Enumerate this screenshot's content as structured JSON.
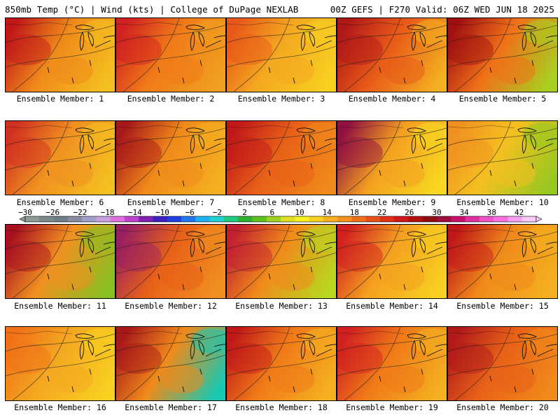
{
  "header": {
    "left": "850mb Temp (°C) | Wind (kts) | College of DuPage NEXLAB",
    "right": "00Z GEFS | F270 Valid: 06Z WED JUN 18 2025"
  },
  "panels": [
    {
      "label": "Ensemble Member: 1",
      "base": "#f08a1a",
      "west": "#c01818",
      "east": "#f4c020"
    },
    {
      "label": "Ensemble Member: 2",
      "base": "#f07a18",
      "west": "#d02020",
      "east": "#f0a020"
    },
    {
      "label": "Ensemble Member: 3",
      "base": "#f4a820",
      "west": "#e85818",
      "east": "#f8d020"
    },
    {
      "label": "Ensemble Member: 4",
      "base": "#e85a18",
      "west": "#b01818",
      "east": "#f4b020"
    },
    {
      "label": "Ensemble Member: 5",
      "base": "#f07018",
      "west": "#a01010",
      "east": "#a8d020"
    },
    {
      "label": "Ensemble Member: 6",
      "base": "#f09020",
      "west": "#d03020",
      "east": "#f4c020"
    },
    {
      "label": "Ensemble Member: 7",
      "base": "#f08a1a",
      "west": "#a81818",
      "east": "#f4b020"
    },
    {
      "label": "Ensemble Member: 8",
      "base": "#e86018",
      "west": "#c01818",
      "east": "#f08a1a"
    },
    {
      "label": "Ensemble Member: 9",
      "base": "#f4a020",
      "west": "#901040",
      "east": "#f8d820"
    },
    {
      "label": "Ensemble Member: 10",
      "base": "#f4c020",
      "west": "#f09020",
      "east": "#98c820"
    },
    {
      "label": "Ensemble Member: 11",
      "base": "#f09020",
      "west": "#a81020",
      "east": "#88c020"
    },
    {
      "label": "Ensemble Member: 12",
      "base": "#e86018",
      "west": "#982060",
      "east": "#f09020"
    },
    {
      "label": "Ensemble Member: 13",
      "base": "#f08a1a",
      "west": "#c02030",
      "east": "#b8d820"
    },
    {
      "label": "Ensemble Member: 14",
      "base": "#f4a020",
      "west": "#d02020",
      "east": "#f8d020"
    },
    {
      "label": "Ensemble Member: 15",
      "base": "#f08a1a",
      "west": "#c01818",
      "east": "#f4b020"
    },
    {
      "label": "Ensemble Member: 16",
      "base": "#f4a820",
      "west": "#f07018",
      "east": "#f8d020"
    },
    {
      "label": "Ensemble Member: 17",
      "base": "#f08a1a",
      "west": "#a81818",
      "east": "#18c8b0"
    },
    {
      "label": "Ensemble Member: 18",
      "base": "#f07a18",
      "west": "#c01818",
      "east": "#f4b020"
    },
    {
      "label": "Ensemble Member: 19",
      "base": "#f07a18",
      "west": "#d02020",
      "east": "#f4b020"
    },
    {
      "label": "Ensemble Member: 20",
      "base": "#e86018",
      "west": "#b01818",
      "east": "#f08a1a"
    }
  ],
  "colorbar": {
    "ticks": [
      "−30",
      "−26",
      "−22",
      "−18",
      "−14",
      "−10",
      "−6",
      "−2",
      "2",
      "6",
      "10",
      "14",
      "18",
      "22",
      "26",
      "30",
      "34",
      "38",
      "42"
    ],
    "colors": [
      "#8c9c94",
      "#7a8a88",
      "#6e7e88",
      "#8a8aa0",
      "#a0a0c8",
      "#c8a0e0",
      "#e070e0",
      "#c040d0",
      "#8020b0",
      "#4020c0",
      "#2040e0",
      "#2078f0",
      "#20b0f0",
      "#20d0d0",
      "#20c880",
      "#30b030",
      "#60c020",
      "#a0d020",
      "#e0e020",
      "#f8f020",
      "#f8d020",
      "#f8b020",
      "#f89020",
      "#f07018",
      "#e85018",
      "#e03018",
      "#d01818",
      "#b01010",
      "#900c10",
      "#a00c40",
      "#c81070",
      "#e030a0",
      "#f050c8",
      "#f870e0",
      "#f8a0f0",
      "#f8c8f8"
    ]
  }
}
